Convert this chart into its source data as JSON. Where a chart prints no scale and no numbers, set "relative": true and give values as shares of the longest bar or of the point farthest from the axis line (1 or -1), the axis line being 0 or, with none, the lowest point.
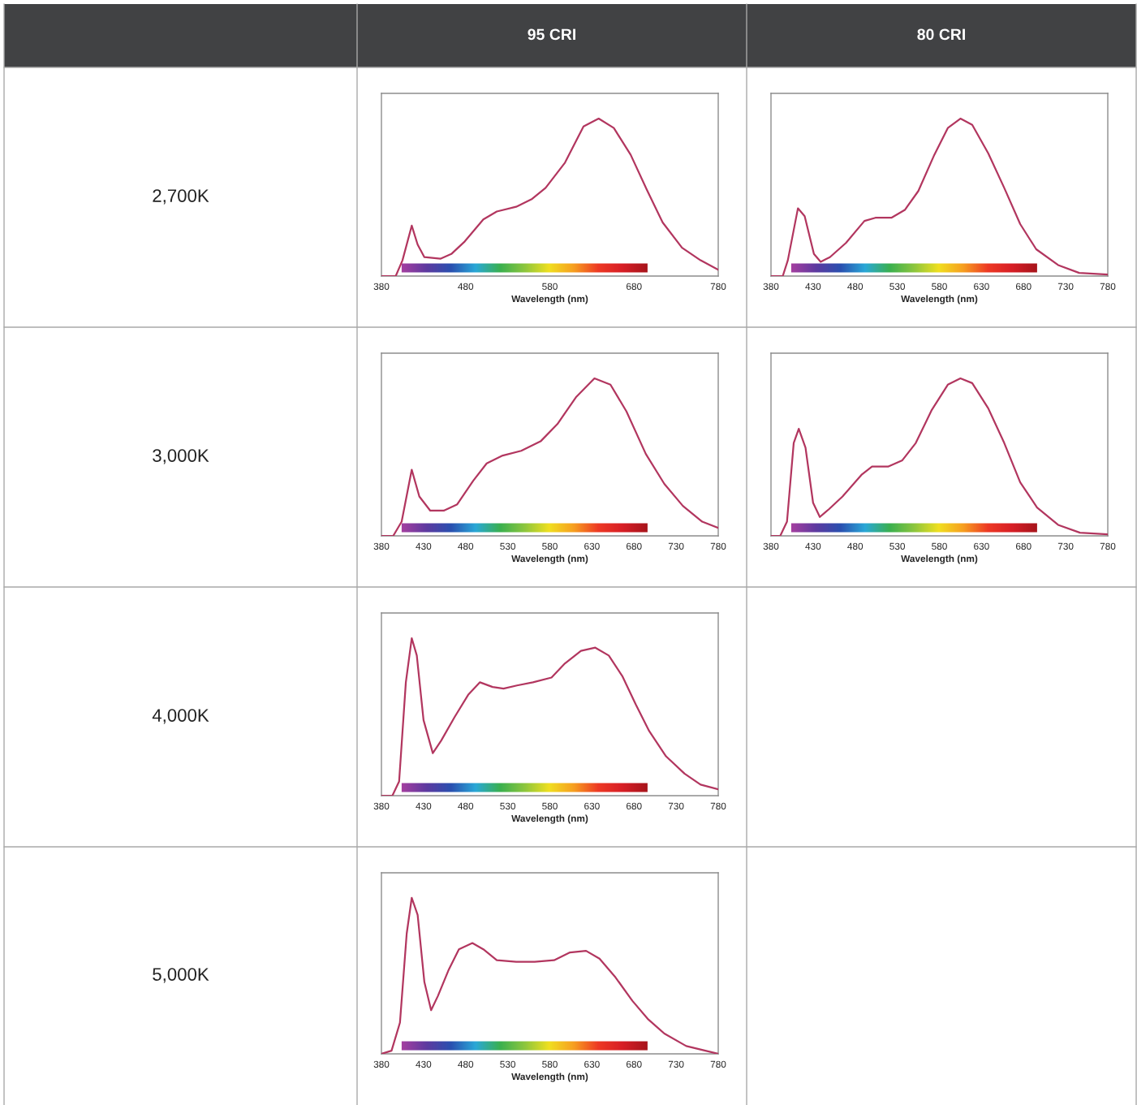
{
  "chart_data": [
    {
      "type": "other",
      "annotations": [
        "95 CRI",
        "80 CRI"
      ]
    },
    {
      "type": "other",
      "annotations": [
        "2,700K"
      ]
    },
    {
      "type": "line",
      "relative": true,
      "xlabel": "Wavelength (nm)",
      "tick_labels": "x",
      "xlim": [
        380,
        780
      ],
      "xticks": [
        380,
        480,
        580,
        680,
        780
      ],
      "x": [
        380,
        397,
        405,
        416,
        423,
        431,
        450,
        463,
        479,
        501,
        517,
        540,
        559,
        575,
        598,
        620,
        638,
        656,
        676,
        695,
        714,
        737,
        759,
        780
      ],
      "series": [
        {
          "color": "#b2365f",
          "values": [
            0,
            0,
            0.1,
            0.32,
            0.2,
            0.12,
            0.11,
            0.14,
            0.22,
            0.36,
            0.41,
            0.44,
            0.49,
            0.56,
            0.72,
            0.95,
            1,
            0.94,
            0.77,
            0.55,
            0.34,
            0.18,
            0.1,
            0.04
          ]
        }
      ]
    },
    {
      "type": "line",
      "relative": true,
      "xlabel": "Wavelength (nm)",
      "tick_labels": "x",
      "xlim": [
        380,
        780
      ],
      "xticks": [
        380,
        430,
        480,
        530,
        580,
        630,
        680,
        730,
        780
      ],
      "x": [
        380,
        394,
        400,
        412,
        420,
        431,
        439,
        450,
        469,
        491,
        504,
        523,
        539,
        555,
        574,
        590,
        605,
        619,
        638,
        657,
        676,
        695,
        721,
        746,
        780
      ],
      "series": [
        {
          "color": "#b2365f",
          "values": [
            0,
            0,
            0.1,
            0.43,
            0.38,
            0.14,
            0.09,
            0.12,
            0.21,
            0.35,
            0.37,
            0.37,
            0.42,
            0.54,
            0.77,
            0.94,
            1,
            0.96,
            0.78,
            0.56,
            0.33,
            0.17,
            0.07,
            0.02,
            0.01
          ]
        }
      ]
    },
    {
      "type": "other",
      "annotations": [
        "3,000K"
      ]
    },
    {
      "type": "line",
      "relative": true,
      "xlabel": "Wavelength (nm)",
      "tick_labels": "x",
      "xlim": [
        380,
        780
      ],
      "xticks": [
        380,
        430,
        480,
        530,
        580,
        630,
        680,
        730,
        780
      ],
      "x": [
        380,
        394,
        404,
        416,
        425,
        438,
        454,
        470,
        489,
        505,
        524,
        546,
        569,
        589,
        611,
        633,
        652,
        671,
        694,
        716,
        738,
        761,
        780
      ],
      "series": [
        {
          "color": "#b2365f",
          "values": [
            0,
            0,
            0.09,
            0.42,
            0.25,
            0.16,
            0.16,
            0.2,
            0.35,
            0.46,
            0.51,
            0.54,
            0.6,
            0.71,
            0.88,
            1,
            0.96,
            0.79,
            0.52,
            0.33,
            0.19,
            0.09,
            0.05
          ]
        }
      ]
    },
    {
      "type": "line",
      "relative": true,
      "xlabel": "Wavelength (nm)",
      "tick_labels": "x",
      "xlim": [
        380,
        780
      ],
      "xticks": [
        380,
        430,
        480,
        530,
        580,
        630,
        680,
        730,
        780
      ],
      "x": [
        380,
        391,
        399,
        407,
        413,
        421,
        430,
        438,
        449,
        465,
        488,
        500,
        519,
        536,
        552,
        571,
        590,
        605,
        619,
        638,
        657,
        676,
        696,
        721,
        747,
        780
      ],
      "series": [
        {
          "color": "#b2365f",
          "values": [
            0,
            0,
            0.09,
            0.59,
            0.68,
            0.56,
            0.21,
            0.12,
            0.17,
            0.25,
            0.39,
            0.44,
            0.44,
            0.48,
            0.59,
            0.8,
            0.96,
            1,
            0.97,
            0.81,
            0.59,
            0.34,
            0.18,
            0.07,
            0.02,
            0.01
          ]
        }
      ]
    },
    {
      "type": "other",
      "annotations": [
        "4,000K"
      ]
    },
    {
      "type": "line",
      "relative": true,
      "xlabel": "Wavelength (nm)",
      "tick_labels": "x",
      "xlim": [
        380,
        780
      ],
      "xticks": [
        380,
        430,
        480,
        530,
        580,
        630,
        680,
        730,
        780
      ],
      "x": [
        380,
        393,
        401,
        409,
        416,
        422,
        430,
        441,
        451,
        467,
        483,
        497,
        512,
        525,
        541,
        560,
        582,
        598,
        617,
        634,
        650,
        666,
        682,
        698,
        718,
        740,
        759,
        780
      ],
      "series": [
        {
          "color": "#b2365f",
          "values": [
            0,
            0,
            0.09,
            0.72,
            1,
            0.89,
            0.48,
            0.27,
            0.35,
            0.5,
            0.64,
            0.72,
            0.69,
            0.68,
            0.7,
            0.72,
            0.75,
            0.84,
            0.92,
            0.94,
            0.89,
            0.76,
            0.58,
            0.41,
            0.25,
            0.14,
            0.07,
            0.04
          ]
        }
      ]
    },
    {
      "type": "other",
      "annotations": [
        "5,000K"
      ]
    },
    {
      "type": "line",
      "relative": true,
      "xlabel": "Wavelength (nm)",
      "tick_labels": "x",
      "xlim": [
        380,
        780
      ],
      "xticks": [
        380,
        430,
        480,
        530,
        580,
        630,
        680,
        730,
        780
      ],
      "x": [
        380,
        392,
        402,
        410,
        416,
        423,
        431,
        439,
        447,
        460,
        472,
        488,
        501,
        517,
        540,
        562,
        585,
        604,
        623,
        639,
        658,
        678,
        697,
        716,
        742,
        780
      ],
      "series": [
        {
          "color": "#b2365f",
          "values": [
            0,
            0.02,
            0.2,
            0.77,
            1,
            0.89,
            0.46,
            0.28,
            0.37,
            0.54,
            0.67,
            0.71,
            0.67,
            0.6,
            0.59,
            0.59,
            0.6,
            0.65,
            0.66,
            0.61,
            0.49,
            0.34,
            0.22,
            0.13,
            0.05,
            0
          ]
        }
      ]
    }
  ]
}
